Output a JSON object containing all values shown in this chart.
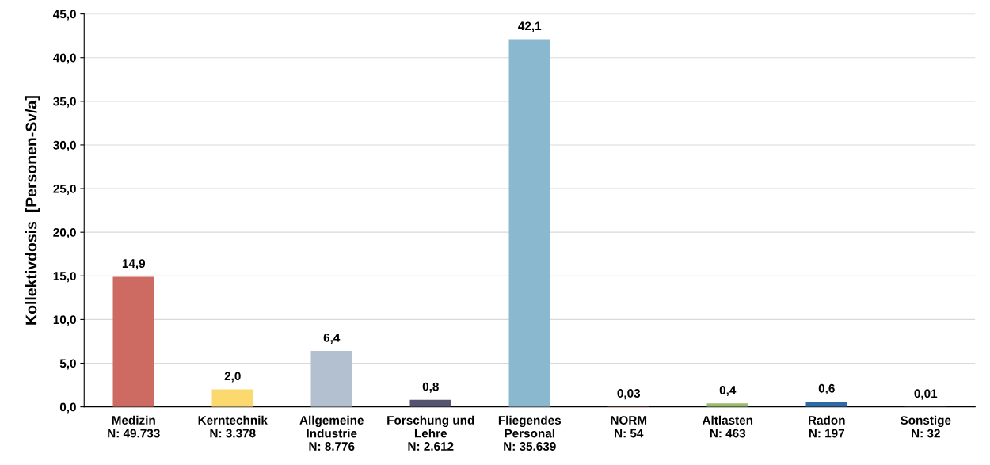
{
  "chart_data": {
    "type": "bar",
    "ylabel": "Kollektivdosis  [Personen-Sv/a]",
    "categories": [
      "Medizin\nN: 49.733",
      "Kerntechnik\nN: 3.378",
      "Allgemeine\nIndustrie\nN: 8.776",
      "Forschung und\nLehre\nN: 2.612",
      "Fliegendes\nPersonal\nN: 35.639",
      "NORM\nN: 54",
      "Altlasten\nN: 463",
      "Radon\nN: 197",
      "Sonstige\nN: 32"
    ],
    "values": [
      14.9,
      2.0,
      6.4,
      0.8,
      42.1,
      0.03,
      0.4,
      0.6,
      0.01
    ],
    "value_labels": [
      "14,9",
      "2,0",
      "6,4",
      "0,8",
      "42,1",
      "0,03",
      "0,4",
      "0,6",
      "0,01"
    ],
    "colors": [
      "#cd6a62",
      "#fcd96f",
      "#b3c0cf",
      "#545470",
      "#8ab9cf",
      "#c0504d",
      "#9bbb6b",
      "#2e6aa5",
      "#7f7f7f"
    ],
    "ylim": [
      0,
      45
    ],
    "yticks": [
      {
        "value": 0,
        "label": "0,0"
      },
      {
        "value": 5,
        "label": "5,0"
      },
      {
        "value": 10,
        "label": "10,0"
      },
      {
        "value": 15,
        "label": "15,0"
      },
      {
        "value": 20,
        "label": "20,0"
      },
      {
        "value": 25,
        "label": "25,0"
      },
      {
        "value": 30,
        "label": "30,0"
      },
      {
        "value": 35,
        "label": "35,0"
      },
      {
        "value": 40,
        "label": "40,0"
      },
      {
        "value": 45,
        "label": "45,0"
      }
    ],
    "grid": "y"
  }
}
